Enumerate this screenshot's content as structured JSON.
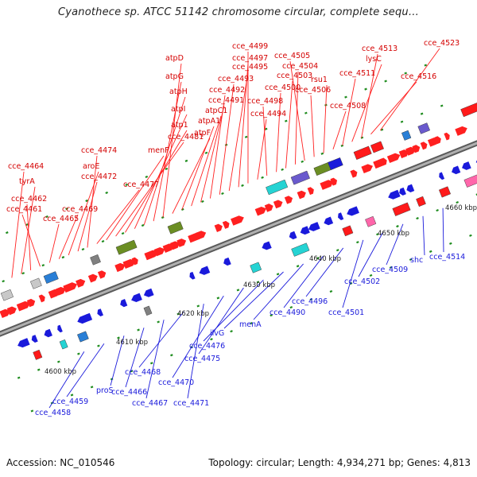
{
  "title": "Cyanothece sp. ATCC 51142 chromosome circular, complete sequ…",
  "footer": {
    "accession": "Accession: NC_010546",
    "summary": "Topology: circular; Length: 4,934,271 bp; Genes: 4,813"
  },
  "colors": {
    "forward": "#ff2020",
    "reverse": "#1a1adb",
    "backbone": "#888888"
  },
  "scale_labels": [
    "4600 kbp",
    "4610 kbp",
    "4620 kbp",
    "4630 kbp",
    "4640 kbp",
    "4650 kbp",
    "4660 kbp"
  ],
  "upper_labels": [
    "cce_4464",
    "tyrA",
    "cce_4462",
    "cce_4461",
    "cce_4465",
    "cce_4469",
    "aroE",
    "cce_4472",
    "cce_4474",
    "cce_4477",
    "menF",
    "cce_4481",
    "atp1",
    "atpI",
    "atpH",
    "atpG",
    "atpD",
    "atpF",
    "atpA1",
    "atpC1",
    "cce_4491",
    "cce_4492",
    "cce_4493",
    "cce_4495",
    "cce_4497",
    "cce_4499",
    "cce_4494",
    "cce_4498",
    "cce_4500",
    "cce_4503",
    "cce_4504",
    "cce_4505",
    "cce_4506",
    "rsu1",
    "cce_4508",
    "cce_4511",
    "lysC",
    "cce_4513",
    "cce_4516",
    "cce_4523"
  ],
  "lower_labels": [
    "cce_4458",
    "cce_4459",
    "proS",
    "cce_4466",
    "cce_4467",
    "cce_4468",
    "cce_4471",
    "cce_4470",
    "cce_4475",
    "cce_4476",
    "ilvG",
    "menA",
    "cce_4490",
    "cce_4496",
    "cce_4501",
    "cce_4502",
    "cce_4509",
    "shc",
    "cce_4514"
  ]
}
